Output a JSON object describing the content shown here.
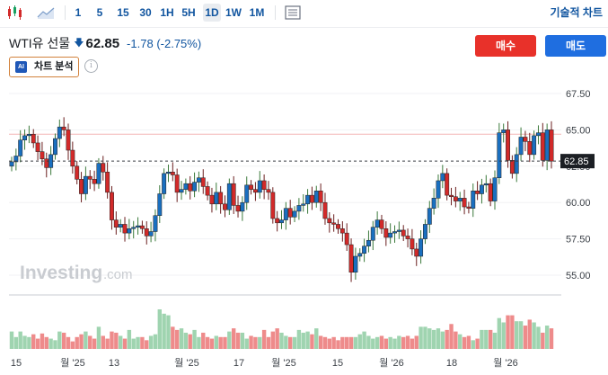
{
  "toolbar": {
    "items": [
      "1",
      "5",
      "15",
      "30",
      "1H",
      "5H",
      "1D",
      "1W",
      "1M"
    ],
    "active": "1D",
    "technical_label": "기술적 차트"
  },
  "header": {
    "instrument": "WTI유 선물",
    "price": "62.85",
    "change": "-1.78",
    "change_pct": "(-2.75%)",
    "buy_label": "매수",
    "sell_label": "매도",
    "ai_badge": "AI",
    "ai_label": "차트 분석",
    "info_glyph": "i"
  },
  "colors": {
    "up": "#18a060",
    "down": "#d22a2a",
    "up_fill": "#1a6fbf",
    "accent": "#1256a0",
    "buy": "#e8312a",
    "sell": "#1f6ee0"
  },
  "watermark": {
    "brand": "Investing",
    "suffix": ".com"
  },
  "chart_data": {
    "type": "candlestick",
    "ylim": [
      53.6,
      68.2
    ],
    "y_ticks": [
      "67.50",
      "65.00",
      "62.50",
      "60.00",
      "57.50",
      "55.00"
    ],
    "current_price": "62.85",
    "reference_line": 64.7,
    "x_labels": [
      "15",
      "월 '25",
      "13",
      "월 '25",
      "17",
      "월 '25",
      "15",
      "월 '26",
      "18",
      "월 '26"
    ],
    "closes": [
      62.8,
      63.2,
      64.3,
      64.6,
      64.7,
      64.1,
      63.5,
      63.0,
      62.4,
      63.3,
      64.4,
      65.2,
      65.0,
      63.6,
      62.5,
      61.6,
      60.6,
      61.8,
      61.6,
      61.3,
      62.7,
      62.1,
      60.7,
      58.8,
      58.3,
      58.5,
      57.9,
      58.2,
      58.3,
      58.4,
      58.2,
      57.7,
      58.0,
      59.1,
      60.6,
      62.0,
      62.1,
      61.9,
      60.7,
      60.9,
      61.3,
      60.8,
      61.4,
      61.7,
      61.1,
      60.5,
      59.9,
      60.7,
      59.9,
      59.5,
      61.3,
      59.8,
      59.4,
      60.0,
      61.2,
      60.9,
      60.7,
      61.5,
      60.9,
      60.7,
      58.9,
      58.6,
      58.8,
      59.6,
      59.0,
      59.4,
      59.8,
      59.9,
      60.5,
      60.0,
      60.8,
      60.0,
      58.9,
      58.6,
      58.5,
      58.2,
      57.9,
      57.1,
      55.2,
      56.3,
      56.5,
      57.0,
      57.4,
      58.3,
      58.8,
      58.2,
      57.6,
      57.9,
      58.0,
      58.1,
      57.7,
      57.5,
      56.8,
      56.3,
      57.5,
      58.5,
      59.6,
      60.3,
      61.5,
      62.0,
      60.5,
      60.4,
      60.1,
      60.3,
      59.7,
      59.6,
      60.8,
      60.6,
      61.2,
      61.3,
      60.1,
      61.7,
      64.8,
      65.0,
      62.9,
      62.0,
      63.3,
      64.5,
      64.2,
      63.3,
      64.6,
      64.8,
      62.9,
      65.0,
      62.85
    ],
    "volumes": [
      0.44,
      0.3,
      0.44,
      0.33,
      0.3,
      0.37,
      0.26,
      0.39,
      0.3,
      0.26,
      0.22,
      0.44,
      0.41,
      0.3,
      0.19,
      0.3,
      0.37,
      0.44,
      0.33,
      0.26,
      0.56,
      0.33,
      0.26,
      0.44,
      0.41,
      0.33,
      0.26,
      0.48,
      0.26,
      0.3,
      0.3,
      0.22,
      0.33,
      0.37,
      1.0,
      0.89,
      0.85,
      0.56,
      0.48,
      0.52,
      0.41,
      0.37,
      0.48,
      0.3,
      0.41,
      0.3,
      0.26,
      0.33,
      0.3,
      0.3,
      0.44,
      0.52,
      0.41,
      0.41,
      0.26,
      0.33,
      0.3,
      0.3,
      0.48,
      0.3,
      0.44,
      0.52,
      0.41,
      0.33,
      0.3,
      0.3,
      0.48,
      0.41,
      0.44,
      0.37,
      0.52,
      0.33,
      0.3,
      0.26,
      0.3,
      0.22,
      0.3,
      0.3,
      0.3,
      0.3,
      0.37,
      0.44,
      0.33,
      0.26,
      0.3,
      0.33,
      0.26,
      0.3,
      0.26,
      0.33,
      0.3,
      0.33,
      0.26,
      0.33,
      0.56,
      0.56,
      0.52,
      0.48,
      0.52,
      0.44,
      0.48,
      0.63,
      0.44,
      0.37,
      0.3,
      0.33,
      0.22,
      0.26,
      0.48,
      0.48,
      0.48,
      0.41,
      0.78,
      0.67,
      0.85,
      0.85,
      0.7,
      0.7,
      0.59,
      0.74,
      0.67,
      0.56,
      0.41,
      0.59,
      0.52
    ]
  }
}
